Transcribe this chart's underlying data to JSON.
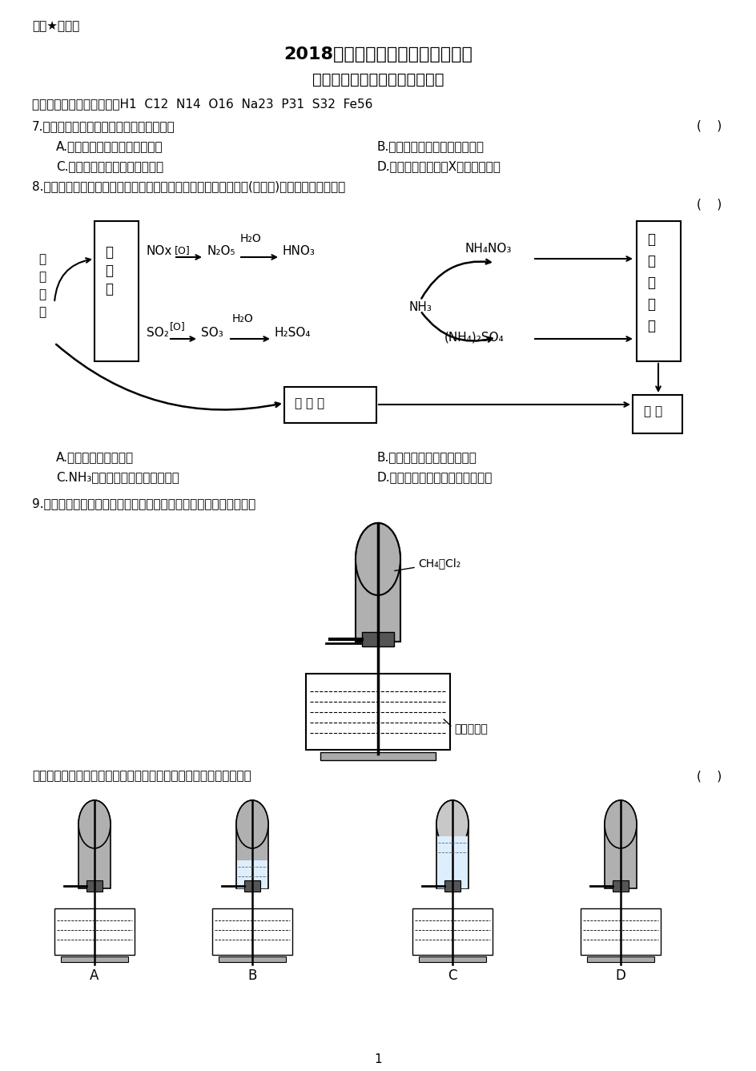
{
  "bg_color": "#ffffff",
  "title1": "2018年普通高等学校全国统一考试",
  "title2": "理科综合能力测试（化学部分）",
  "secret_label": "绝密★启用前",
  "atomic_mass_label": "可能用到的相对原子质量：H1  C12  N14  O16  Na23  P31  S32  Fe56",
  "q7_text": "7.化学与生活密切相关，下列说法错误的是",
  "q7_bracket": "(    )",
  "q7_A": "A.碳酸钓可用于去除餐具的油污",
  "q7_B": "B.漂白粉可用于生活用水的消毒",
  "q7_C": "C.氢氧化铝可用于中和过多胃酸",
  "q7_D": "D.碳酸鑙可用于胃肠X射线造影检查",
  "q8_text": "8.研究表明，氮氧化物和二氧化硫在形成雾霧时与大气中的氨有关(如下图)。下列叙述错误的是",
  "q8_bracket": "(    )",
  "q8_A": "A.雾和霧的分散剂相同",
  "q8_B": "B.雾霧中含有础酸铵和硫酸铵",
  "q8_C": "C.NH₃是形成无机颗粒物的傅化剂",
  "q8_D": "D.雾霧的形成与过度施用氮肃有关",
  "q9_text": "9.实验室中用如图所示的装置进行甲烷与氯气在光照下反应的实验。",
  "q9_label_gas": "CH₄和Cl₂",
  "q9_label_water": "饱和食盐水",
  "q9_bottom_text": "光照下反应一段时间后，下列装置示意图中能正确反映实验现象的是",
  "q9_bottom_bracket": "(    )",
  "page_num": "1",
  "bottom_labels": [
    "A",
    "B",
    "C",
    "D"
  ],
  "diagram_NOx": "NOx",
  "diagram_N2O5": "N₂O₅",
  "diagram_HNO3": "HNO₃",
  "diagram_NH4NO3": "NH₄NO₃",
  "diagram_NH3": "NH₃",
  "diagram_SO2": "SO₂",
  "diagram_SO3": "SO₃",
  "diagram_H2SO4": "H₂SO₄",
  "diagram_NH42SO4": "(NH₄)₂SO₄",
  "diagram_H2O_top": "H₂O",
  "diagram_H2O_bot": "H₂O",
  "diagram_O_top": "[O]",
  "diagram_O_bot": "[O]",
  "diagram_gas_box": [
    "气",
    "体",
    "物"
  ],
  "diagram_inorg_box": [
    "无",
    "机",
    "颗",
    "粒",
    "物"
  ],
  "diagram_fuel": [
    "燃",
    "料",
    "燃",
    "烧"
  ],
  "diagram_particles": "颗 粒 物",
  "diagram_smog": "雾 霧"
}
